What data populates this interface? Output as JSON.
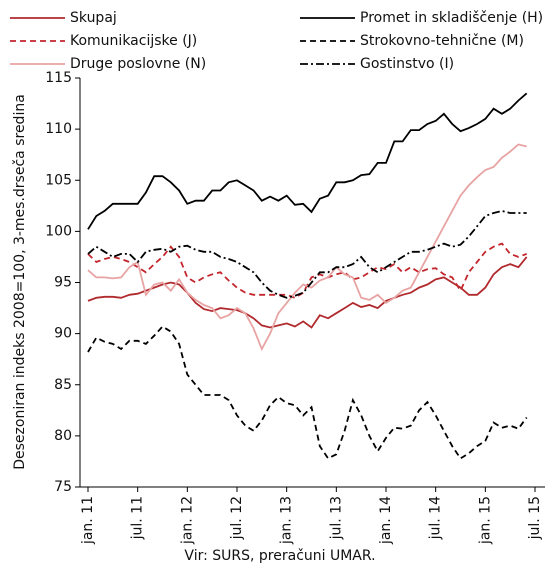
{
  "chart_data": {
    "type": "line",
    "y_label": "Desezoniran indeks 2008=100, 3-mes.drseča sredina",
    "source": "Vir:  SURS, preračuni UMAR.",
    "categories": [
      "jan. 11",
      null,
      null,
      null,
      null,
      null,
      "jul. 11",
      null,
      null,
      null,
      null,
      null,
      "jan. 12",
      null,
      null,
      null,
      null,
      null,
      "jul. 12",
      null,
      null,
      null,
      null,
      null,
      "jan. 13",
      null,
      null,
      null,
      null,
      null,
      "jul. 13",
      null,
      null,
      null,
      null,
      null,
      "jan. 14",
      null,
      null,
      null,
      null,
      null,
      "jul. 14",
      null,
      null,
      null,
      null,
      null,
      "jan. 15",
      null,
      null,
      null,
      null,
      null,
      "jul. 15"
    ],
    "ylim": [
      75,
      115
    ],
    "yticks": [
      75,
      80,
      85,
      90,
      95,
      100,
      105,
      110,
      115
    ],
    "series": [
      {
        "name": "Skupaj",
        "color": "#b12a2e",
        "dash": "solid",
        "values": [
          93.2,
          93.5,
          93.6,
          93.6,
          93.5,
          93.8,
          93.9,
          94.2,
          94.5,
          94.8,
          95.0,
          94.8,
          94.0,
          93.0,
          92.4,
          92.2,
          92.5,
          92.4,
          92.3,
          92.0,
          91.5,
          90.8,
          90.6,
          90.8,
          91.0,
          90.7,
          91.2,
          90.6,
          91.8,
          91.5,
          92.0,
          92.5,
          93.0,
          92.6,
          92.8,
          92.5,
          93.2,
          93.5,
          93.8,
          94.0,
          94.5,
          94.8,
          95.3,
          95.5,
          95.0,
          94.5,
          93.8,
          93.8,
          94.5,
          95.8,
          96.5,
          96.8,
          96.5,
          97.5,
          null
        ]
      },
      {
        "name": "Komunikacijske (J)",
        "color": "#c3262c",
        "dash": "dashed",
        "values": [
          97.8,
          97.0,
          97.3,
          97.5,
          97.3,
          97.0,
          96.5,
          96.0,
          96.8,
          97.5,
          98.5,
          97.5,
          95.5,
          95.0,
          95.5,
          95.8,
          96.0,
          95.2,
          94.5,
          94.0,
          93.8,
          93.8,
          93.8,
          93.8,
          93.8,
          93.5,
          94.0,
          95.5,
          95.8,
          95.5,
          95.8,
          96.0,
          95.3,
          95.5,
          96.0,
          96.5,
          96.3,
          96.8,
          96.0,
          96.5,
          96.0,
          96.3,
          96.4,
          95.8,
          95.5,
          94.2,
          96.0,
          97.0,
          98.0,
          98.5,
          98.8,
          97.8,
          97.5,
          97.8,
          null
        ]
      },
      {
        "name": "Druge poslovne (N)",
        "color": "#e8a3a3",
        "dash": "solid",
        "values": [
          96.2,
          95.5,
          95.5,
          95.4,
          95.5,
          96.5,
          97.0,
          93.8,
          94.8,
          95.0,
          94.2,
          95.3,
          94.0,
          93.3,
          92.8,
          92.5,
          91.5,
          91.8,
          92.5,
          92.0,
          90.5,
          88.5,
          90.0,
          92.0,
          93.0,
          94.0,
          94.8,
          94.5,
          95.2,
          95.5,
          96.5,
          95.8,
          95.5,
          93.5,
          93.3,
          93.8,
          93.0,
          93.5,
          94.2,
          94.5,
          96.0,
          97.5,
          99.0,
          100.5,
          102.0,
          103.5,
          104.5,
          105.3,
          106.0,
          106.3,
          107.2,
          107.8,
          108.5,
          108.3,
          null
        ]
      },
      {
        "name": "Promet in skladiščenje (H)",
        "color": "#000000",
        "dash": "solid",
        "values": [
          100.2,
          101.5,
          102.0,
          102.7,
          102.7,
          102.7,
          102.7,
          103.8,
          105.4,
          105.4,
          104.8,
          104.0,
          102.7,
          103.0,
          103.0,
          104.0,
          104.0,
          104.8,
          105.0,
          104.5,
          104.0,
          103.0,
          103.4,
          103.0,
          103.5,
          102.6,
          102.7,
          101.9,
          103.2,
          103.5,
          104.8,
          104.8,
          105.0,
          105.5,
          105.6,
          106.7,
          106.7,
          108.8,
          108.8,
          109.9,
          109.9,
          110.5,
          110.8,
          111.5,
          110.5,
          109.8,
          110.1,
          110.5,
          111.0,
          112.0,
          111.5,
          112.0,
          112.8,
          113.5,
          null
        ]
      },
      {
        "name": "Strokovno-tehnične (M)",
        "color": "#000000",
        "dash": "dashed",
        "values": [
          88.2,
          89.6,
          89.2,
          89.0,
          88.5,
          89.3,
          89.3,
          89.0,
          89.8,
          90.7,
          90.2,
          89.0,
          86.0,
          85.0,
          84.0,
          84.0,
          84.0,
          83.5,
          82.0,
          81.0,
          80.5,
          81.5,
          83.0,
          83.8,
          83.2,
          83.0,
          82.0,
          82.8,
          79.0,
          77.8,
          78.2,
          80.5,
          83.5,
          82.0,
          80.0,
          78.5,
          79.8,
          80.8,
          80.7,
          81.0,
          82.5,
          83.3,
          82.0,
          80.5,
          79.0,
          77.8,
          78.3,
          79.0,
          79.5,
          81.3,
          80.8,
          81.0,
          80.7,
          81.8,
          null
        ]
      },
      {
        "name": "Gostinstvo (I)",
        "color": "#000000",
        "dash": "dashdot",
        "values": [
          97.8,
          98.5,
          98.0,
          97.5,
          97.8,
          97.8,
          97.0,
          98.0,
          98.2,
          98.3,
          98.0,
          98.5,
          98.6,
          98.2,
          98.0,
          98.0,
          97.5,
          97.3,
          97.0,
          96.5,
          96.0,
          95.0,
          94.2,
          93.8,
          93.5,
          93.7,
          94.0,
          95.0,
          96.0,
          96.0,
          96.5,
          96.5,
          96.8,
          97.5,
          96.5,
          96.0,
          96.5,
          97.0,
          97.5,
          98.0,
          98.0,
          98.2,
          98.5,
          98.8,
          98.5,
          98.7,
          99.5,
          100.5,
          101.5,
          101.8,
          102.0,
          101.8,
          101.8,
          101.8,
          null
        ]
      }
    ]
  }
}
